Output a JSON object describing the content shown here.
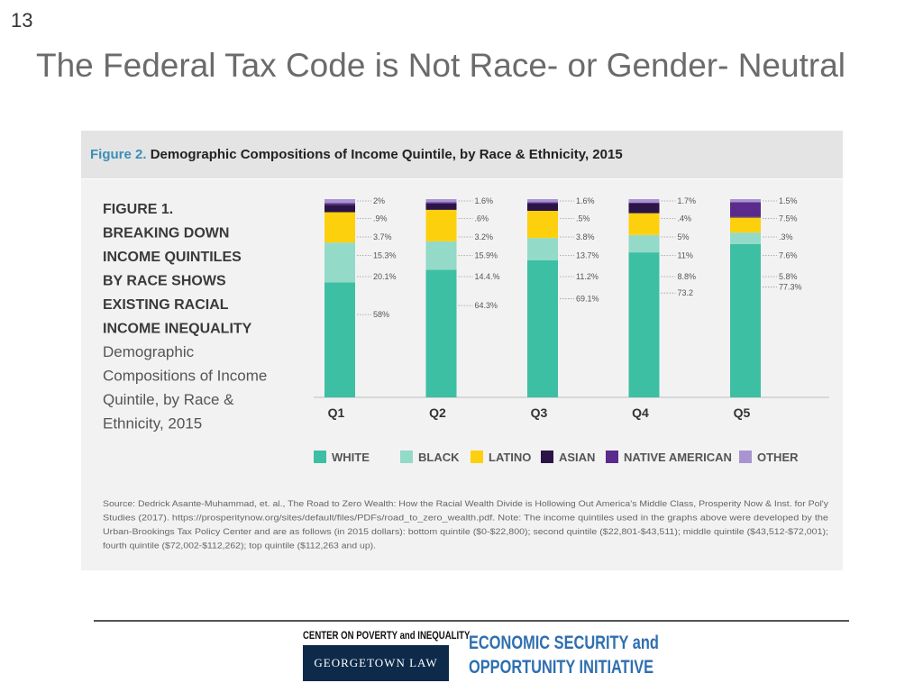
{
  "slide": {
    "number": "13",
    "title": "The Federal Tax Code is Not Race- or Gender- Neutral"
  },
  "figure": {
    "label": "Figure 2.",
    "caption": "Demographic Compositions of Income Quintile, by Race & Ethnicity, 2015",
    "inner_title_lines": [
      "FIGURE 1.",
      "BREAKING DOWN",
      "INCOME QUINTILES",
      "BY RACE SHOWS",
      "EXISTING RACIAL",
      "INCOME INEQUALITY"
    ],
    "inner_subtitle_lines": [
      "Demographic",
      "Compositions of Income",
      "Quintile, by Race &",
      "Ethnicity, 2015"
    ],
    "source_lines": [
      "Source: Dedrick Asante-Muhammad, et. al., The Road to Zero Wealth: How the Racial Wealth Divide is Hollowing Out America's Middle Class, Prosperity Now & Inst. for Pol'y",
      "Studies (2017). https://prosperitynow.org/sites/default/files/PDFs/road_to_zero_wealth.pdf. Note: The income quintiles used in the graphs above were developed by the",
      "Urban-Brookings Tax Policy Center and are as follows (in 2015 dollars): bottom quintile ($0-$22,800); second quintile ($22,801-$43,511); middle quintile ($43,512-$72,001);",
      "fourth quintile ($72,002-$112,262); top quintile ($112,263 and up)."
    ]
  },
  "chart_data": {
    "type": "bar",
    "stacked": true,
    "categories": [
      "Q1",
      "Q2",
      "Q3",
      "Q4",
      "Q5"
    ],
    "series": [
      {
        "name": "WHITE",
        "color": "#3dbfa3",
        "values": [
          58,
          64.3,
          69.1,
          73.2,
          77.3
        ],
        "labels": [
          "58%",
          "64.3%",
          "69.1%",
          "73.2",
          "77.3%"
        ]
      },
      {
        "name": "BLACK",
        "color": "#93dac8",
        "values": [
          20.1,
          14.4,
          11.2,
          8.8,
          5.8
        ],
        "labels": [
          "20.1%",
          "14.4.%",
          "11.2%",
          "8.8%",
          "5.8%"
        ]
      },
      {
        "name": "LATINO",
        "color": "#fdd00e",
        "values": [
          15.3,
          15.9,
          13.7,
          11,
          7.6
        ],
        "labels": [
          "15.3%",
          "15.9%",
          "13.7%",
          "11%",
          "7.6%"
        ]
      },
      {
        "name": "ASIAN",
        "color": "#2b1547",
        "values": [
          3.7,
          3.2,
          3.8,
          5,
          0.3
        ],
        "labels": [
          "3.7%",
          "3.2%",
          "3.8%",
          "5%",
          ".3%"
        ]
      },
      {
        "name": "NATIVE AMERICAN",
        "color": "#5a2a8c",
        "values": [
          0.9,
          0.6,
          0.5,
          0.4,
          7.5
        ],
        "labels": [
          ".9%",
          ".6%",
          ".5%",
          ".4%",
          "7.5%"
        ]
      },
      {
        "name": "OTHER",
        "color": "#a994d1",
        "values": [
          2,
          1.6,
          1.6,
          1.7,
          1.5
        ],
        "labels": [
          "2%",
          "1.6%",
          "1.6%",
          "1.7%",
          "1.5%"
        ]
      }
    ],
    "ylim": [
      0,
      100
    ],
    "legend": "bottom",
    "grid": false,
    "xlabel": "",
    "ylabel": ""
  },
  "footer": {
    "center_title": "CENTER ON POVERTY and INEQUALITY",
    "georgetown": "GEORGETOWN LAW",
    "initiative_line1": "ECONOMIC SECURITY and",
    "initiative_line2": "OPPORTUNITY INITIATIVE"
  }
}
